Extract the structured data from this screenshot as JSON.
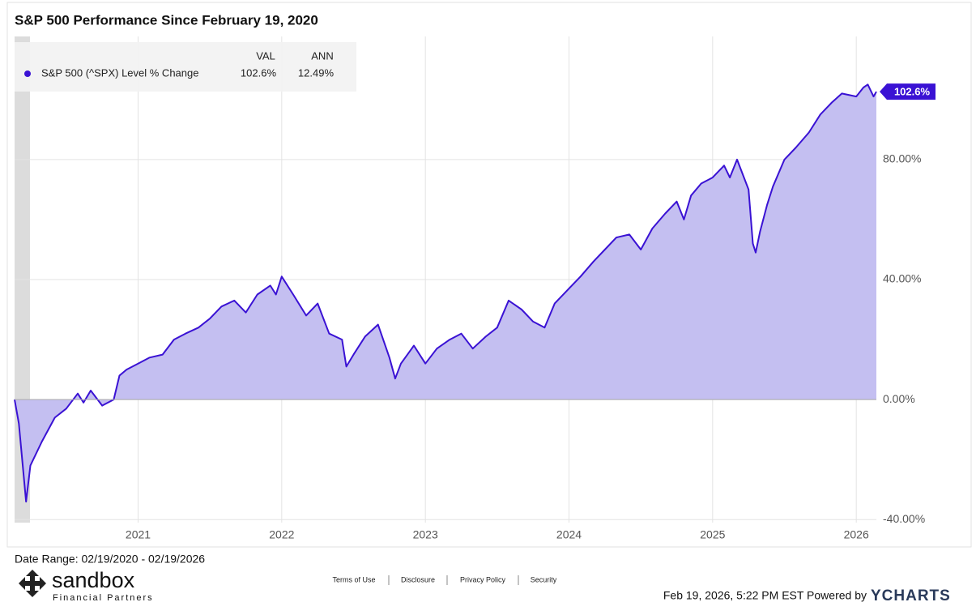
{
  "chart_data": {
    "type": "line",
    "title": "S&P 500 Performance Since February 19, 2020",
    "legend_headers": [
      "VAL",
      "ANN"
    ],
    "series": [
      {
        "name": "S&P 500 (^SPX) Level % Change",
        "color": "#3a12d4",
        "fill": "#c4bff1",
        "legend_values": [
          "102.6%",
          "12.49%"
        ],
        "last_label": "102.6%",
        "x": [
          2020.14,
          2020.17,
          2020.22,
          2020.25,
          2020.33,
          2020.42,
          2020.5,
          2020.58,
          2020.62,
          2020.67,
          2020.75,
          2020.83,
          2020.87,
          2020.92,
          2021.0,
          2021.08,
          2021.17,
          2021.25,
          2021.33,
          2021.42,
          2021.5,
          2021.58,
          2021.67,
          2021.75,
          2021.83,
          2021.92,
          2021.96,
          2022.0,
          2022.08,
          2022.17,
          2022.25,
          2022.33,
          2022.42,
          2022.45,
          2022.5,
          2022.58,
          2022.67,
          2022.75,
          2022.79,
          2022.83,
          2022.92,
          2023.0,
          2023.08,
          2023.17,
          2023.25,
          2023.33,
          2023.42,
          2023.5,
          2023.58,
          2023.67,
          2023.75,
          2023.83,
          2023.9,
          2024.0,
          2024.08,
          2024.17,
          2024.25,
          2024.33,
          2024.42,
          2024.5,
          2024.58,
          2024.67,
          2024.75,
          2024.8,
          2024.85,
          2024.92,
          2025.0,
          2025.08,
          2025.12,
          2025.17,
          2025.25,
          2025.28,
          2025.3,
          2025.33,
          2025.38,
          2025.42,
          2025.5,
          2025.58,
          2025.67,
          2025.75,
          2025.83,
          2025.9,
          2026.0,
          2026.05,
          2026.08,
          2026.12,
          2026.14
        ],
        "values": [
          0,
          -8,
          -34,
          -22,
          -14,
          -6,
          -3,
          2,
          -1,
          3,
          -2,
          0,
          8,
          10,
          12,
          14,
          15,
          20,
          22,
          24,
          27,
          31,
          33,
          29,
          35,
          38,
          35,
          41,
          35,
          28,
          32,
          22,
          20,
          11,
          15,
          21,
          25,
          14,
          7,
          12,
          18,
          12,
          17,
          20,
          22,
          17,
          21,
          24,
          33,
          30,
          26,
          24,
          32,
          37,
          41,
          46,
          50,
          54,
          55,
          50,
          57,
          62,
          66,
          60,
          68,
          72,
          74,
          78,
          74,
          80,
          70,
          52,
          49,
          56,
          65,
          71,
          80,
          84,
          89,
          95,
          99,
          102,
          101,
          104,
          105,
          101,
          102.6
        ]
      }
    ],
    "xlim": [
      2020.14,
      2026.14
    ],
    "xticks": [
      2021,
      2022,
      2023,
      2024,
      2025,
      2026
    ],
    "ylim": [
      -41,
      121
    ],
    "yticks": [
      {
        "value": -40,
        "label": "-40.00%"
      },
      {
        "value": 0,
        "label": "0.00%"
      },
      {
        "value": 40,
        "label": "40.00%"
      },
      {
        "value": 80,
        "label": "80.00%"
      }
    ],
    "grid": true
  },
  "footer": {
    "date_range": "Date Range: 02/19/2020 - 02/19/2026",
    "links": [
      "Terms of Use",
      "Disclosure",
      "Privacy Policy",
      "Security"
    ],
    "timestamp": "Feb 19, 2026, 5:22 PM EST Powered by",
    "brand": "YCHARTS",
    "logo": "sandbox",
    "logo_sub": "Financial Partners"
  }
}
